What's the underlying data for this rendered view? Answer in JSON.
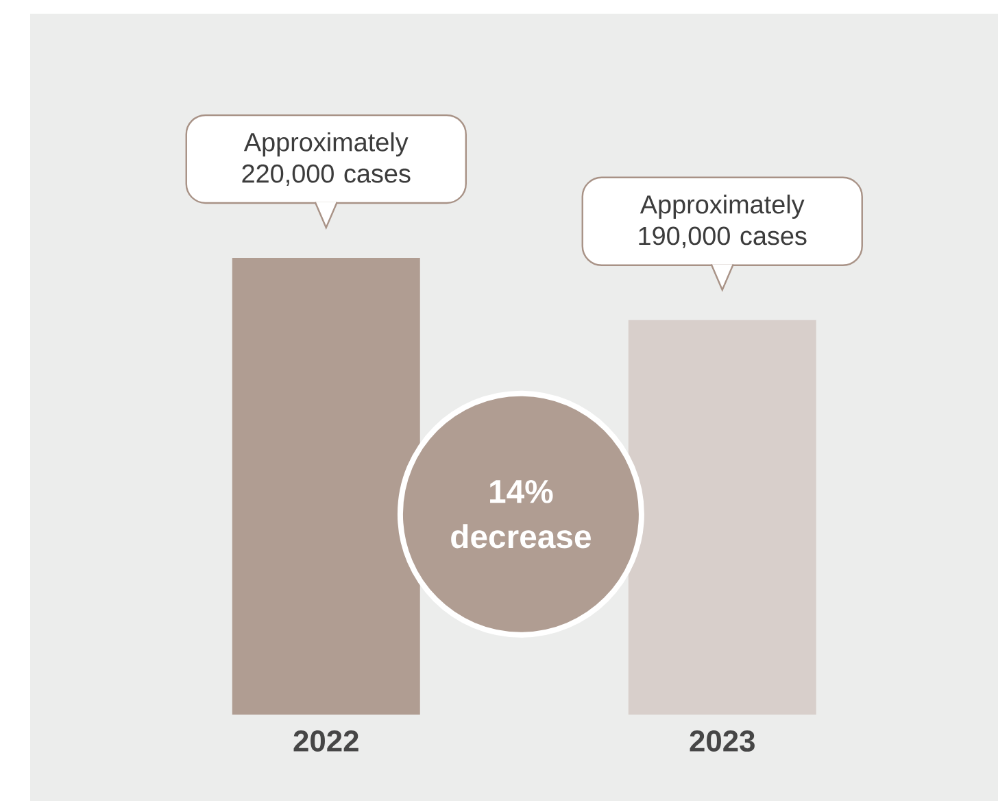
{
  "chart_data": {
    "type": "bar",
    "categories": [
      "2022",
      "2023"
    ],
    "values": [
      220000,
      190000
    ],
    "colors": [
      "#b09d92",
      "#d8cfcb"
    ],
    "value_labels": [
      "Approximately 220,000 cases",
      "Approximately 190,000 cases"
    ],
    "annotations": [
      "14% decrease"
    ]
  }
}
